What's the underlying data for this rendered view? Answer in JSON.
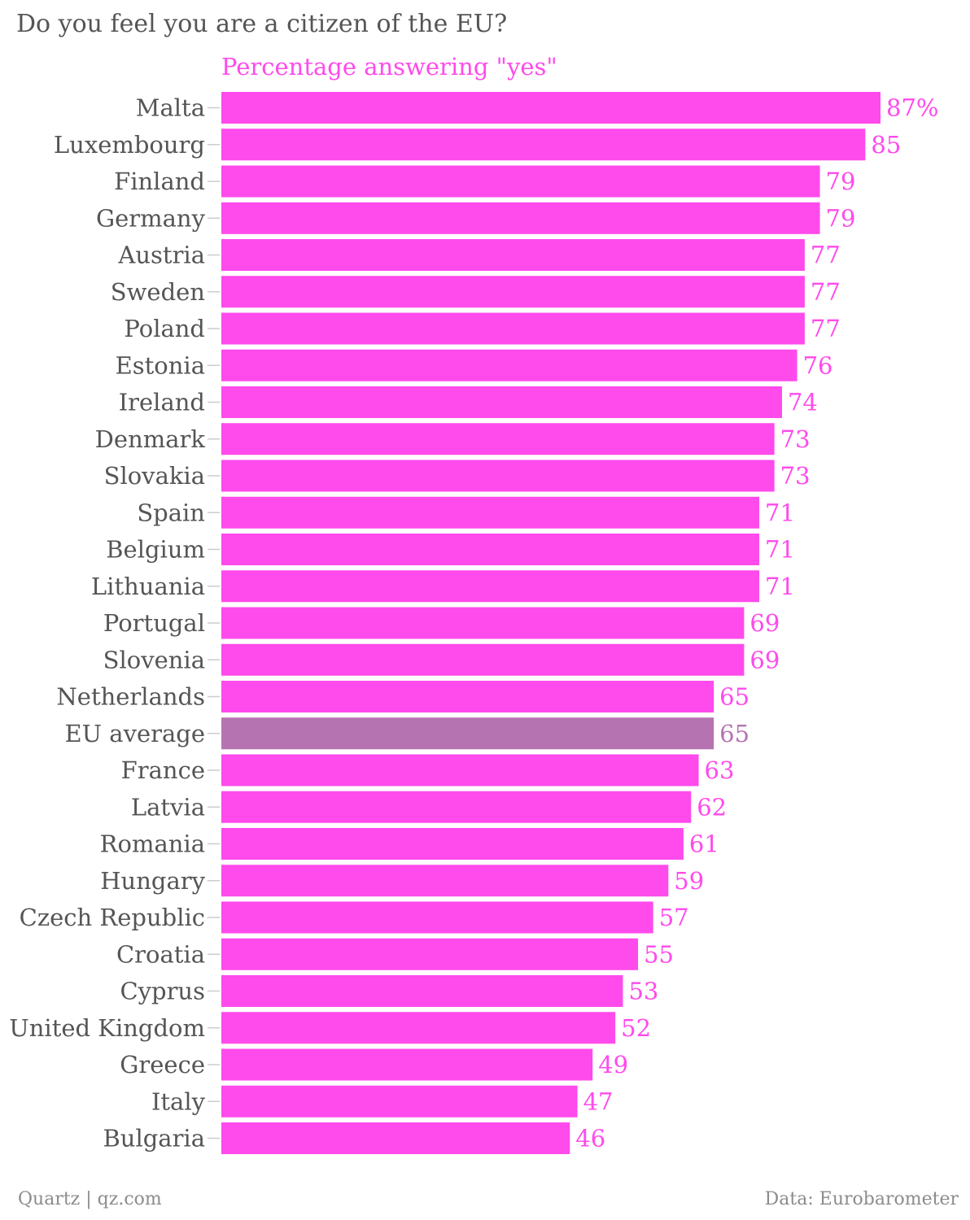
{
  "title": "Do you feel you are a citizen of the EU?",
  "footer": {
    "credit": "Quartz | qz.com",
    "source": "Data: Eurobarometer"
  },
  "colors": {
    "bar": "#ff4aec",
    "highlight_bar": "#b574b1",
    "subtitle": "#ff4aec",
    "value_label": "#ff4aec",
    "highlight_label": "#b574b1",
    "category_label": "#555555",
    "footer": "#8c8c8c"
  },
  "chart_data": {
    "type": "bar",
    "orientation": "horizontal",
    "subtitle": "Percentage answering \"yes\"",
    "value_suffix_first": "%",
    "highlight_category": "EU average",
    "categories": [
      "Malta",
      "Luxembourg",
      "Finland",
      "Germany",
      "Austria",
      "Sweden",
      "Poland",
      "Estonia",
      "Ireland",
      "Denmark",
      "Slovakia",
      "Spain",
      "Belgium",
      "Lithuania",
      "Portugal",
      "Slovenia",
      "Netherlands",
      "EU average",
      "France",
      "Latvia",
      "Romania",
      "Hungary",
      "Czech Republic",
      "Croatia",
      "Cyprus",
      "United Kingdom",
      "Greece",
      "Italy",
      "Bulgaria"
    ],
    "values": [
      87,
      85,
      79,
      79,
      77,
      77,
      77,
      76,
      74,
      73,
      73,
      71,
      71,
      71,
      69,
      69,
      65,
      65,
      63,
      62,
      61,
      59,
      57,
      55,
      53,
      52,
      49,
      47,
      46
    ],
    "xlim": [
      0,
      87
    ]
  }
}
